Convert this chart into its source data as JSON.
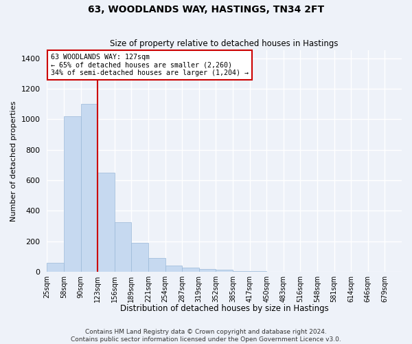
{
  "title": "63, WOODLANDS WAY, HASTINGS, TN34 2FT",
  "subtitle": "Size of property relative to detached houses in Hastings",
  "xlabel": "Distribution of detached houses by size in Hastings",
  "ylabel": "Number of detached properties",
  "bar_color": "#c6d9f0",
  "bar_edge_color": "#9ab8d8",
  "background_color": "#eef2f9",
  "grid_color": "#ffffff",
  "annotation_text": "63 WOODLANDS WAY: 127sqm\n← 65% of detached houses are smaller (2,260)\n34% of semi-detached houses are larger (1,204) →",
  "vline_color": "#cc0000",
  "annotation_box_color": "#ffffff",
  "annotation_box_edge": "#cc0000",
  "categories": [
    "25sqm",
    "58sqm",
    "90sqm",
    "123sqm",
    "156sqm",
    "189sqm",
    "221sqm",
    "254sqm",
    "287sqm",
    "319sqm",
    "352sqm",
    "385sqm",
    "417sqm",
    "450sqm",
    "483sqm",
    "516sqm",
    "548sqm",
    "581sqm",
    "614sqm",
    "646sqm",
    "679sqm"
  ],
  "values": [
    58,
    1020,
    1100,
    650,
    325,
    190,
    90,
    42,
    25,
    18,
    12,
    5,
    3,
    2,
    1,
    1,
    0,
    0,
    0,
    0,
    0
  ],
  "ylim": [
    0,
    1450
  ],
  "yticks": [
    0,
    200,
    400,
    600,
    800,
    1000,
    1200,
    1400
  ],
  "vline_bar_index": 3,
  "footnote": "Contains HM Land Registry data © Crown copyright and database right 2024.\nContains public sector information licensed under the Open Government Licence v3.0."
}
